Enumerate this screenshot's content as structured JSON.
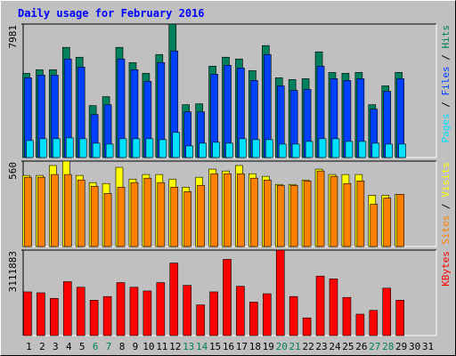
{
  "chart_data": {
    "type": "bar",
    "title": "Daily usage for February 2016",
    "categories": [
      "1",
      "2",
      "3",
      "4",
      "5",
      "6",
      "7",
      "8",
      "9",
      "10",
      "11",
      "12",
      "13",
      "14",
      "15",
      "16",
      "17",
      "18",
      "19",
      "20",
      "21",
      "22",
      "23",
      "24",
      "25",
      "26",
      "27",
      "28",
      "29",
      "30",
      "31"
    ],
    "category_colors": [
      "#000000",
      "#000000",
      "#000000",
      "#000000",
      "#000000",
      "#00805c",
      "#00805c",
      "#000000",
      "#000000",
      "#000000",
      "#000000",
      "#000000",
      "#00805c",
      "#00805c",
      "#000000",
      "#000000",
      "#000000",
      "#000000",
      "#000000",
      "#00805c",
      "#00805c",
      "#000000",
      "#000000",
      "#000000",
      "#000000",
      "#000000",
      "#00805c",
      "#00805c",
      "#000000",
      "#000000",
      "#000000"
    ],
    "legend_separator": " / ",
    "panels": [
      {
        "ylim": [
          0,
          7981
        ],
        "yticks": [
          7981
        ],
        "series": [
          {
            "name": "Hits",
            "color": "#00805c",
            "values": [
              5035,
              5249,
              5249,
              6588,
              5999,
              3106,
              3642,
              6588,
              5677,
              5035,
              6159,
              7981,
              3160,
              3214,
              5463,
              5999,
              5892,
              5195,
              6695,
              4767,
              4660,
              4713,
              6320,
              5088,
              5035,
              5088,
              3160,
              4285,
              5088,
              null,
              null
            ]
          },
          {
            "name": "Files",
            "color": "#0040ff",
            "values": [
              4767,
              4928,
              4928,
              5892,
              5410,
              2571,
              3160,
              5892,
              5249,
              4553,
              5677,
              6374,
              2732,
              2732,
              4981,
              5517,
              5356,
              4606,
              6159,
              4285,
              4017,
              4071,
              5463,
              4713,
              4606,
              4713,
              2892,
              3963,
              4713,
              null,
              null
            ]
          },
          {
            "name": "Pages",
            "color": "#00e0ff",
            "values": [
              1018,
              1125,
              1125,
              1178,
              1125,
              857,
              803,
              1125,
              1125,
              1125,
              1071,
              1500,
              696,
              857,
              911,
              857,
              1125,
              1071,
              1071,
              803,
              803,
              964,
              1125,
              1125,
              964,
              964,
              857,
              803,
              803,
              null,
              null
            ]
          }
        ]
      },
      {
        "ylim": [
          0,
          560
        ],
        "yticks": [
          560
        ],
        "series": [
          {
            "name": "Visits",
            "color": "#ffff00",
            "values": [
              466,
              466,
              531,
              560,
              466,
              419,
              413,
              519,
              442,
              472,
              472,
              442,
              389,
              454,
              507,
              495,
              531,
              477,
              460,
              407,
              407,
              436,
              507,
              472,
              472,
              472,
              336,
              336,
              342,
              null,
              null
            ]
          },
          {
            "name": "Sites",
            "color": "#ff8000",
            "values": [
              454,
              454,
              472,
              472,
              436,
              395,
              348,
              389,
              419,
              448,
              419,
              389,
              360,
              401,
              477,
              477,
              477,
              448,
              436,
              401,
              401,
              430,
              495,
              460,
              413,
              430,
              277,
              318,
              342,
              null,
              null
            ]
          }
        ]
      },
      {
        "ylim": [
          0,
          3111883
        ],
        "yticks": [
          3111883
        ],
        "series": [
          {
            "name": "KBytes",
            "color": "#ff0000",
            "values": [
              1589775,
              1555950,
              1353000,
              1961850,
              1758900,
              1285350,
              1420650,
              1928025,
              1758900,
              1623600,
              1928025,
              2638350,
              1826550,
              1116225,
              1589775,
              2773650,
              1792725,
              1217700,
              1522125,
              3111883,
              1420650,
              642675,
              2164800,
              2063325,
              1386825,
              777975,
              914775,
              1725075,
              1285350,
              null,
              null
            ]
          }
        ]
      }
    ]
  }
}
